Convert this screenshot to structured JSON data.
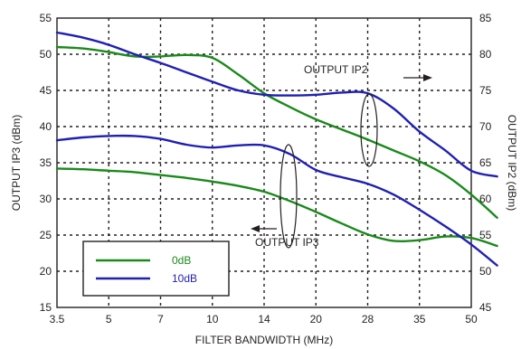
{
  "chart_data": {
    "type": "line",
    "xlabel": "FILTER BANDWIDTH (MHz)",
    "ylabel_left": "OUTPUT IP3 (dBm)",
    "ylabel_right": "OUTPUT IP2 (dBm)",
    "x_ticks": [
      "3.5",
      "5",
      "7",
      "10",
      "14",
      "20",
      "28",
      "35",
      "50"
    ],
    "ylim_left": [
      15,
      55
    ],
    "ylim_right": [
      45,
      85
    ],
    "y_ticks_left": [
      "15",
      "20",
      "25",
      "30",
      "35",
      "40",
      "45",
      "50",
      "55"
    ],
    "y_ticks_right": [
      "45",
      "50",
      "55",
      "60",
      "65",
      "70",
      "75",
      "80",
      "85"
    ],
    "grid": true,
    "colors": {
      "0dB": "#1a8a1a",
      "10dB": "#1f1fb4",
      "frame": "#231f20"
    },
    "legend": {
      "position": "bottom-left",
      "entries": [
        {
          "name": "0dB",
          "color": "#1a8a1a"
        },
        {
          "name": "10dB",
          "color": "#1f1fb4"
        }
      ]
    },
    "annotations": [
      {
        "text": "OUTPUT IP2",
        "axis": "right"
      },
      {
        "text": "OUTPUT IP3",
        "axis": "left"
      }
    ],
    "series": [
      {
        "name": "0dB",
        "measure": "OUTPUT IP2",
        "axis": "right",
        "color": "#1a8a1a",
        "x": [
          0,
          0.5,
          1,
          1.5,
          2,
          2.5,
          3,
          3.5,
          4,
          4.5,
          5,
          5.5,
          6,
          6.5,
          7,
          7.5,
          8,
          8.5
        ],
        "y": [
          81.0,
          80.8,
          80.3,
          79.7,
          79.7,
          79.9,
          79.5,
          77.2,
          74.6,
          72.7,
          71.0,
          69.6,
          68.2,
          66.7,
          65.2,
          63.3,
          60.6,
          57.4
        ]
      },
      {
        "name": "10dB",
        "measure": "OUTPUT IP2",
        "axis": "right",
        "color": "#1f1fb4",
        "x": [
          0,
          0.5,
          1,
          1.5,
          2,
          2.5,
          3,
          3.5,
          4,
          4.5,
          5,
          5.5,
          6,
          6.5,
          7,
          7.5,
          8,
          8.5
        ],
        "y": [
          83.0,
          82.3,
          81.3,
          80.0,
          78.8,
          77.5,
          76.2,
          75.0,
          74.4,
          74.3,
          74.4,
          74.7,
          74.6,
          72.5,
          69.3,
          66.7,
          63.9,
          63.1
        ]
      },
      {
        "name": "0dB",
        "measure": "OUTPUT IP3",
        "axis": "left",
        "color": "#1a8a1a",
        "x": [
          0,
          0.5,
          1,
          1.5,
          2,
          2.5,
          3,
          3.5,
          4,
          4.5,
          5,
          5.5,
          6,
          6.5,
          7,
          7.5,
          8,
          8.5
        ],
        "y": [
          34.2,
          34.1,
          33.9,
          33.7,
          33.3,
          32.9,
          32.4,
          31.8,
          31.0,
          29.7,
          28.2,
          26.6,
          25.1,
          24.2,
          24.3,
          24.8,
          24.6,
          23.5
        ]
      },
      {
        "name": "10dB",
        "measure": "OUTPUT IP3",
        "axis": "left",
        "color": "#1f1fb4",
        "x": [
          0,
          0.5,
          1,
          1.5,
          2,
          2.5,
          3,
          3.5,
          4,
          4.5,
          5,
          5.5,
          6,
          6.5,
          7,
          7.5,
          8,
          8.5
        ],
        "y": [
          38.1,
          38.5,
          38.7,
          38.7,
          38.3,
          37.5,
          37.1,
          37.4,
          37.4,
          36.2,
          34.0,
          33.0,
          32.1,
          30.6,
          28.5,
          26.2,
          23.7,
          20.8
        ]
      }
    ]
  }
}
